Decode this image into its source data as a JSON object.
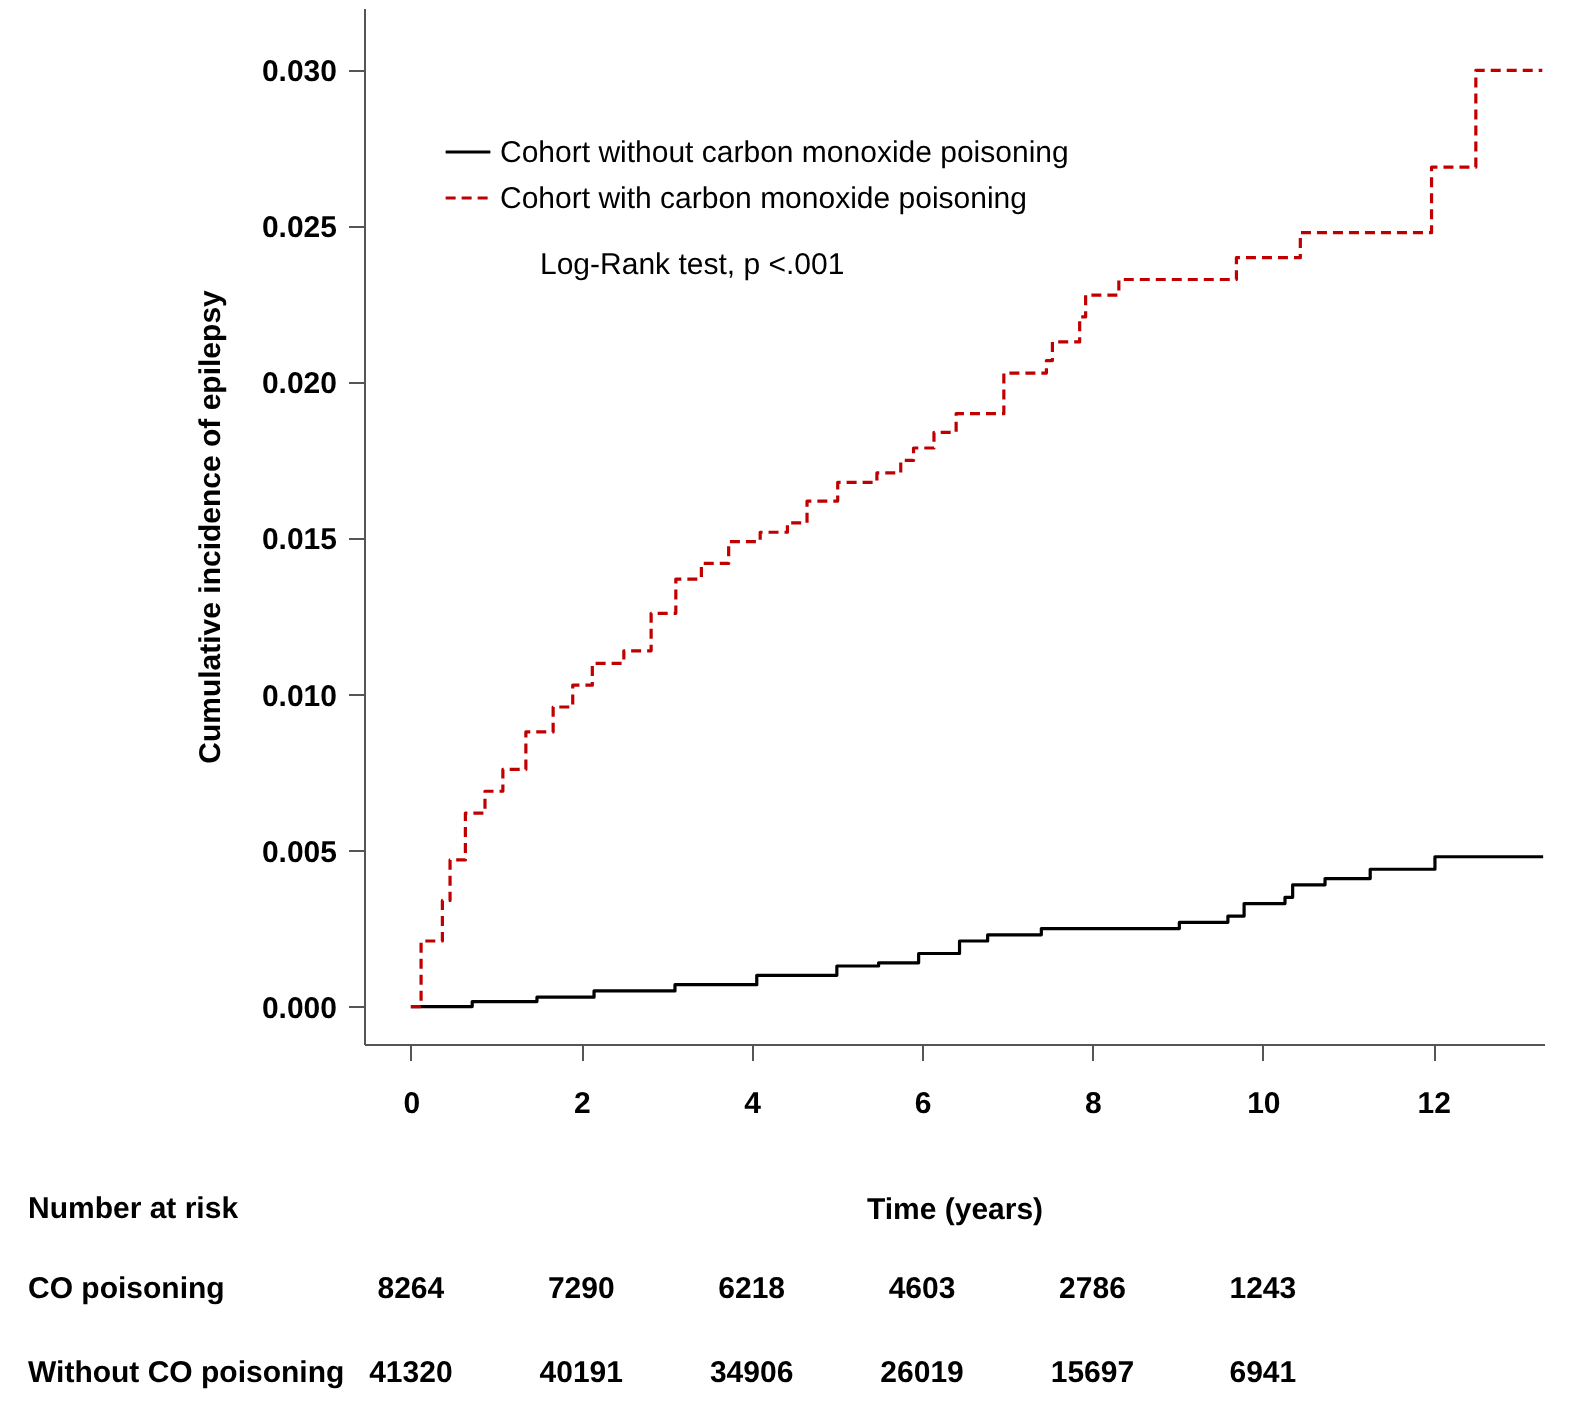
{
  "chart_data": {
    "type": "step",
    "xlabel": "Time (years)",
    "ylabel": "Cumulative incidence of epilepsy",
    "xlim": [
      -0.55,
      13.3
    ],
    "xticks": [
      0,
      2,
      4,
      6,
      8,
      10,
      12
    ],
    "ylim": [
      -0.0012,
      0.032
    ],
    "yticks": [
      {
        "value": 0,
        "label": "0.000"
      },
      {
        "value": 0.005,
        "label": "0.005"
      },
      {
        "value": 0.01,
        "label": "0.010"
      },
      {
        "value": 0.015,
        "label": "0.015"
      },
      {
        "value": 0.02,
        "label": "0.020"
      },
      {
        "value": 0.025,
        "label": "0.025"
      },
      {
        "value": 0.03,
        "label": "0.030"
      }
    ],
    "grid": false,
    "legend": "top left",
    "marker": "none",
    "series": [
      {
        "name": "Cohort without carbon monoxide poisoning",
        "color": "#000000",
        "line_style": "solid",
        "x": [
          0,
          0.72,
          1.48,
          2.15,
          3.1,
          4.06,
          5.0,
          5.49,
          5.96,
          6.44,
          6.77,
          7.4,
          7.87,
          9.02,
          9.59,
          9.78,
          10.26,
          10.35,
          10.73,
          11.26,
          12.02,
          13.29
        ],
        "values": [
          0,
          0.00016,
          0.0003,
          0.0005,
          0.0007,
          0.001,
          0.0013,
          0.0014,
          0.0017,
          0.0021,
          0.0023,
          0.0025,
          0.0025,
          0.0027,
          0.0029,
          0.0033,
          0.0035,
          0.0039,
          0.0041,
          0.0044,
          0.0048,
          0.0048
        ]
      },
      {
        "name": "Cohort with carbon monoxide poisoning",
        "color": "#c00000",
        "line_style": "dashed",
        "x": [
          0,
          0.12,
          0.37,
          0.46,
          0.64,
          0.87,
          1.08,
          1.35,
          1.67,
          1.9,
          2.13,
          2.5,
          2.82,
          3.11,
          3.41,
          3.73,
          4.1,
          4.42,
          4.65,
          5.01,
          5.47,
          5.75,
          5.9,
          6.14,
          6.4,
          6.96,
          7.46,
          7.53,
          7.85,
          7.92,
          8.31,
          9.69,
          10.44,
          11.98,
          12.5,
          13.28
        ],
        "values": [
          0,
          0.0021,
          0.0034,
          0.0047,
          0.0062,
          0.0069,
          0.0076,
          0.0088,
          0.0096,
          0.0103,
          0.011,
          0.0114,
          0.0126,
          0.0137,
          0.0142,
          0.0149,
          0.0152,
          0.0155,
          0.0162,
          0.0168,
          0.0171,
          0.0175,
          0.0179,
          0.0184,
          0.019,
          0.0203,
          0.0207,
          0.0213,
          0.0221,
          0.0228,
          0.0233,
          0.024,
          0.0248,
          0.0269,
          0.03,
          0.03
        ]
      }
    ],
    "annotations": [
      "Log-Rank test,  p <.001",
      "Number at risk",
      "CO poisoning",
      "8264",
      "7290",
      "6218",
      "4603",
      "2786",
      "1243",
      "Without CO poisoning",
      "41320",
      "40191",
      "34906",
      "26019",
      "15697",
      "6941"
    ]
  }
}
